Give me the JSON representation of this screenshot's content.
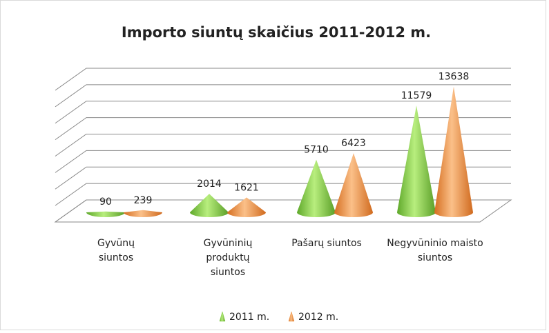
{
  "chart_data": {
    "type": "cone3d",
    "title": "Importo siuntų skaičius 2011-2012 m.",
    "categories": [
      "Gyvūnų siuntos",
      "Gyvūninių produktų siuntos",
      "Pašarų siuntos",
      "Negyvūninio maisto siuntos"
    ],
    "series": [
      {
        "name": "2011 m.",
        "color": "#7ccb3a",
        "values": [
          90,
          2014,
          5710,
          11579
        ]
      },
      {
        "name": "2012 m.",
        "color": "#f0913d",
        "values": [
          239,
          1621,
          6423,
          13638
        ]
      }
    ],
    "ylim": [
      0,
      16000
    ],
    "yticks": [
      0,
      2000,
      4000,
      6000,
      8000,
      10000,
      12000,
      14000,
      16000
    ],
    "grid": true,
    "legend": "bottom"
  }
}
